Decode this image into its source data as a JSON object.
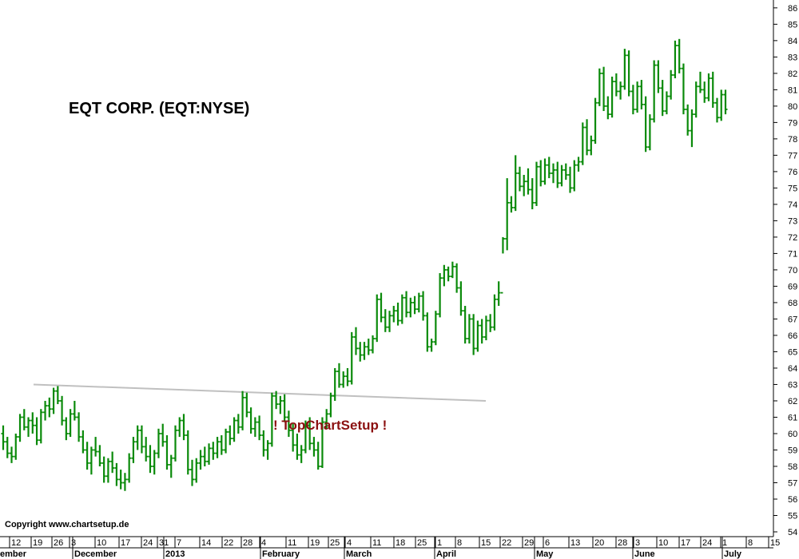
{
  "chart_data": {
    "type": "ohlc",
    "title": "EQT CORP.  (EQT:NYSE)",
    "watermark": "! TopChartSetup !",
    "copyright": "Copyright www.chartsetup.de",
    "ylim": [
      53.6,
      86.6
    ],
    "y_ticks": [
      54,
      55,
      56,
      57,
      58,
      59,
      60,
      61,
      62,
      63,
      64,
      65,
      66,
      67,
      68,
      69,
      70,
      71,
      72,
      73,
      74,
      75,
      76,
      77,
      78,
      79,
      80,
      81,
      82,
      83,
      84,
      85,
      86
    ],
    "x_week_ticks": [
      "12",
      "19",
      "26",
      "3",
      "10",
      "17",
      "24",
      "31",
      "7",
      "14",
      "22",
      "28",
      "4",
      "11",
      "19",
      "25",
      "4",
      "11",
      "18",
      "25",
      "1",
      "8",
      "15",
      "22",
      "29",
      "6",
      "13",
      "20",
      "28",
      "3",
      "10",
      "17",
      "24",
      "1",
      "8",
      "15"
    ],
    "x_months": [
      "ember",
      "December",
      "2013",
      "February",
      "March",
      "April",
      "May",
      "June",
      "July"
    ],
    "trendline": {
      "from": [
        0,
        63.0
      ],
      "to": [
        140,
        62.0
      ],
      "color": "#c0c0c0"
    },
    "colors": {
      "bars": "#0a8a0a",
      "title": "#000000",
      "watermark": "#8b1010",
      "axis": "#000000"
    },
    "series": [
      {
        "values": [
          [
            60.0,
            60.5,
            59.0,
            59.5
          ],
          [
            59.5,
            59.8,
            58.5,
            58.8
          ],
          [
            58.8,
            59.2,
            58.2,
            58.6
          ],
          [
            58.6,
            60.0,
            58.4,
            59.8
          ],
          [
            59.8,
            61.2,
            59.5,
            61.0
          ],
          [
            61.0,
            61.5,
            60.2,
            60.4
          ],
          [
            60.4,
            61.0,
            59.8,
            60.8
          ],
          [
            60.8,
            61.3,
            60.0,
            60.5
          ],
          [
            60.5,
            61.0,
            59.3,
            59.6
          ],
          [
            59.6,
            61.5,
            59.4,
            61.3
          ],
          [
            61.3,
            62.0,
            60.8,
            61.7
          ],
          [
            61.7,
            62.2,
            61.0,
            61.5
          ],
          [
            61.5,
            62.8,
            61.2,
            62.6
          ],
          [
            62.6,
            62.9,
            61.8,
            62.0
          ],
          [
            62.0,
            62.3,
            60.5,
            60.8
          ],
          [
            60.8,
            61.0,
            59.6,
            60.0
          ],
          [
            60.0,
            61.5,
            59.8,
            61.2
          ],
          [
            61.2,
            62.0,
            60.8,
            61.0
          ],
          [
            61.0,
            61.3,
            59.5,
            59.8
          ],
          [
            59.8,
            60.2,
            58.8,
            59.0
          ],
          [
            59.0,
            59.5,
            57.8,
            58.2
          ],
          [
            58.2,
            59.2,
            57.5,
            59.0
          ],
          [
            59.0,
            59.8,
            58.6,
            58.9
          ],
          [
            58.9,
            59.3,
            58.0,
            58.2
          ],
          [
            58.2,
            58.6,
            57.0,
            57.4
          ],
          [
            57.4,
            58.5,
            57.0,
            58.3
          ],
          [
            58.3,
            58.9,
            57.6,
            57.9
          ],
          [
            57.9,
            58.2,
            56.8,
            57.2
          ],
          [
            57.2,
            57.8,
            56.6,
            57.0
          ],
          [
            57.0,
            57.6,
            56.5,
            57.2
          ],
          [
            57.2,
            58.8,
            57.0,
            58.5
          ],
          [
            58.5,
            59.8,
            58.2,
            59.5
          ],
          [
            59.5,
            60.5,
            59.0,
            60.2
          ],
          [
            60.2,
            60.5,
            58.8,
            59.2
          ],
          [
            59.2,
            59.8,
            58.3,
            58.6
          ],
          [
            58.6,
            59.3,
            57.6,
            58.0
          ],
          [
            58.0,
            59.0,
            57.5,
            58.8
          ],
          [
            58.8,
            60.3,
            58.5,
            60.0
          ],
          [
            60.0,
            60.6,
            59.2,
            59.5
          ],
          [
            59.5,
            59.9,
            57.8,
            58.1
          ],
          [
            58.1,
            58.7,
            57.3,
            58.5
          ],
          [
            58.5,
            60.5,
            58.3,
            60.2
          ],
          [
            60.2,
            61.0,
            59.8,
            60.8
          ],
          [
            60.8,
            61.2,
            59.6,
            59.9
          ],
          [
            59.9,
            60.2,
            57.5,
            57.8
          ],
          [
            57.8,
            58.4,
            56.8,
            57.2
          ],
          [
            57.2,
            58.5,
            57.0,
            58.2
          ],
          [
            58.2,
            59.0,
            57.8,
            58.6
          ],
          [
            58.6,
            59.2,
            58.0,
            58.3
          ],
          [
            58.3,
            59.4,
            58.1,
            59.1
          ],
          [
            59.1,
            59.5,
            58.4,
            58.8
          ],
          [
            58.8,
            59.8,
            58.5,
            59.5
          ],
          [
            59.5,
            59.9,
            58.7,
            59.0
          ],
          [
            59.0,
            60.3,
            58.8,
            60.1
          ],
          [
            60.1,
            60.5,
            59.3,
            59.7
          ],
          [
            59.7,
            61.0,
            59.5,
            60.8
          ],
          [
            60.8,
            61.2,
            60.0,
            60.4
          ],
          [
            60.4,
            62.6,
            60.2,
            62.2
          ],
          [
            62.2,
            62.5,
            61.0,
            61.3
          ],
          [
            61.3,
            61.6,
            60.0,
            60.3
          ],
          [
            60.3,
            61.0,
            59.8,
            60.7
          ],
          [
            60.7,
            61.1,
            59.6,
            59.9
          ],
          [
            59.9,
            60.2,
            58.6,
            59.0
          ],
          [
            59.0,
            59.6,
            58.4,
            59.4
          ],
          [
            59.4,
            62.5,
            59.2,
            62.3
          ],
          [
            62.3,
            62.6,
            61.5,
            61.8
          ],
          [
            61.8,
            62.3,
            61.2,
            62.0
          ],
          [
            62.0,
            62.4,
            60.7,
            61.0
          ],
          [
            61.0,
            61.4,
            59.8,
            60.2
          ],
          [
            60.2,
            60.6,
            58.9,
            59.3
          ],
          [
            59.3,
            60.0,
            58.4,
            58.7
          ],
          [
            58.7,
            59.3,
            58.2,
            59.0
          ],
          [
            59.0,
            60.8,
            58.8,
            60.5
          ],
          [
            60.5,
            61.0,
            59.0,
            59.4
          ],
          [
            59.4,
            59.8,
            58.6,
            59.0
          ],
          [
            59.0,
            59.5,
            57.8,
            58.0
          ],
          [
            58.0,
            61.0,
            57.9,
            60.7
          ],
          [
            60.7,
            61.5,
            60.3,
            61.2
          ],
          [
            61.2,
            62.5,
            61.0,
            62.3
          ],
          [
            62.3,
            64.0,
            62.0,
            63.8
          ],
          [
            63.8,
            64.3,
            62.8,
            63.0
          ],
          [
            63.0,
            63.8,
            62.8,
            63.5
          ],
          [
            63.5,
            64.0,
            62.9,
            63.2
          ],
          [
            63.2,
            66.2,
            63.0,
            65.9
          ],
          [
            65.9,
            66.5,
            64.8,
            65.2
          ],
          [
            65.2,
            65.6,
            64.4,
            64.8
          ],
          [
            64.8,
            65.6,
            64.5,
            65.3
          ],
          [
            65.3,
            65.8,
            64.8,
            65.1
          ],
          [
            65.1,
            66.0,
            64.9,
            65.8
          ],
          [
            65.8,
            68.5,
            65.6,
            68.2
          ],
          [
            68.2,
            68.6,
            66.8,
            67.1
          ],
          [
            67.1,
            67.6,
            66.2,
            66.5
          ],
          [
            66.5,
            67.5,
            66.2,
            67.2
          ],
          [
            67.2,
            67.8,
            66.8,
            67.5
          ],
          [
            67.5,
            68.0,
            66.6,
            66.9
          ],
          [
            66.9,
            68.5,
            66.7,
            68.3
          ],
          [
            68.3,
            68.7,
            67.1,
            67.4
          ],
          [
            67.4,
            68.3,
            67.1,
            68.0
          ],
          [
            68.0,
            68.4,
            67.3,
            67.6
          ],
          [
            67.6,
            68.6,
            67.4,
            68.4
          ],
          [
            68.4,
            68.7,
            66.9,
            67.2
          ],
          [
            67.2,
            67.4,
            65.0,
            65.3
          ],
          [
            65.3,
            65.8,
            65.0,
            65.6
          ],
          [
            65.6,
            67.5,
            65.4,
            67.3
          ],
          [
            67.3,
            69.8,
            67.1,
            69.5
          ],
          [
            69.5,
            70.3,
            69.0,
            70.0
          ],
          [
            70.0,
            70.2,
            69.3,
            69.6
          ],
          [
            69.6,
            70.5,
            69.5,
            70.2
          ],
          [
            70.2,
            70.4,
            68.6,
            68.9
          ],
          [
            68.9,
            69.3,
            67.2,
            67.5
          ],
          [
            67.5,
            67.8,
            65.5,
            65.8
          ],
          [
            65.8,
            67.3,
            65.5,
            67.0
          ],
          [
            67.0,
            67.3,
            64.8,
            65.2
          ],
          [
            65.2,
            66.9,
            65.0,
            66.6
          ],
          [
            66.6,
            67.0,
            65.5,
            65.9
          ],
          [
            65.9,
            67.2,
            65.7,
            66.9
          ],
          [
            66.9,
            67.3,
            66.2,
            66.5
          ],
          [
            66.5,
            68.5,
            66.3,
            68.2
          ],
          [
            68.2,
            69.3,
            67.8,
            68.6
          ],
          [
            68.6,
            72.0,
            71.0,
            71.9
          ],
          [
            71.9,
            75.6,
            71.2,
            74.1
          ],
          [
            74.1,
            74.5,
            73.5,
            73.8
          ],
          [
            73.8,
            77.0,
            73.6,
            75.9
          ],
          [
            75.9,
            76.3,
            74.8,
            75.1
          ],
          [
            75.1,
            75.8,
            74.5,
            75.4
          ],
          [
            75.4,
            76.2,
            74.6,
            74.9
          ],
          [
            74.9,
            75.6,
            73.7,
            74.1
          ],
          [
            74.1,
            76.6,
            73.9,
            76.3
          ],
          [
            76.3,
            76.7,
            75.1,
            75.4
          ],
          [
            75.4,
            76.8,
            75.2,
            76.4
          ],
          [
            76.4,
            76.9,
            75.6,
            75.9
          ],
          [
            75.9,
            76.5,
            75.3,
            76.1
          ],
          [
            76.1,
            76.6,
            75.0,
            75.3
          ],
          [
            75.3,
            76.4,
            75.1,
            76.1
          ],
          [
            76.1,
            76.5,
            75.5,
            75.8
          ],
          [
            75.8,
            76.3,
            74.7,
            75.0
          ],
          [
            75.0,
            76.7,
            74.8,
            76.4
          ],
          [
            76.4,
            76.9,
            76.0,
            76.6
          ],
          [
            76.6,
            79.0,
            76.4,
            78.7
          ],
          [
            78.7,
            79.2,
            77.0,
            77.3
          ],
          [
            77.3,
            78.2,
            77.0,
            77.9
          ],
          [
            77.9,
            80.5,
            77.7,
            80.2
          ],
          [
            80.2,
            82.3,
            80.0,
            82.0
          ],
          [
            82.0,
            82.4,
            79.7,
            80.0
          ],
          [
            80.0,
            80.6,
            79.2,
            79.5
          ],
          [
            79.5,
            81.8,
            79.3,
            81.5
          ],
          [
            81.5,
            82.0,
            80.6,
            80.9
          ],
          [
            80.9,
            81.5,
            80.4,
            81.2
          ],
          [
            81.2,
            83.5,
            81.0,
            83.1
          ],
          [
            83.1,
            83.4,
            80.6,
            80.9
          ],
          [
            80.9,
            81.3,
            79.5,
            79.8
          ],
          [
            79.8,
            81.5,
            79.6,
            81.2
          ],
          [
            81.2,
            81.6,
            79.8,
            80.1
          ],
          [
            80.1,
            80.6,
            77.2,
            77.5
          ],
          [
            77.5,
            79.5,
            77.3,
            79.2
          ],
          [
            79.2,
            82.8,
            79.0,
            82.5
          ],
          [
            82.5,
            82.8,
            80.8,
            81.1
          ],
          [
            81.1,
            81.6,
            79.4,
            79.7
          ],
          [
            79.7,
            80.9,
            79.5,
            80.6
          ],
          [
            80.6,
            82.2,
            80.4,
            81.9
          ],
          [
            81.9,
            84.0,
            81.7,
            83.7
          ],
          [
            83.7,
            84.1,
            82.0,
            82.3
          ],
          [
            82.3,
            82.6,
            79.5,
            79.8
          ],
          [
            79.8,
            80.1,
            78.2,
            78.5
          ],
          [
            78.5,
            79.8,
            77.5,
            79.5
          ],
          [
            79.5,
            81.5,
            79.3,
            81.2
          ],
          [
            81.2,
            82.1,
            80.8,
            81.0
          ],
          [
            81.0,
            81.5,
            80.2,
            80.5
          ],
          [
            80.5,
            82.0,
            80.3,
            81.7
          ],
          [
            81.7,
            82.1,
            79.9,
            80.2
          ],
          [
            80.2,
            80.5,
            79.0,
            79.3
          ],
          [
            79.3,
            81.0,
            79.1,
            80.7
          ],
          [
            80.7,
            81.0,
            79.5,
            79.8
          ]
        ]
      }
    ]
  }
}
